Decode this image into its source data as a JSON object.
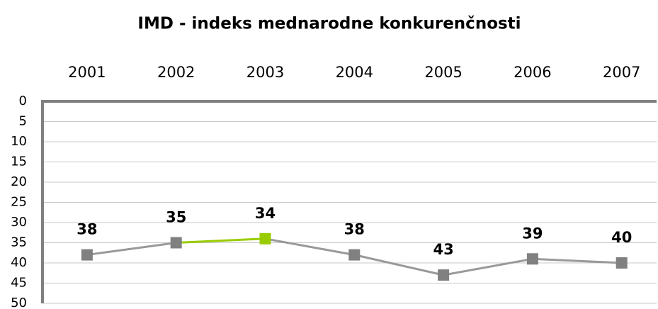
{
  "chart_data": {
    "type": "line",
    "title": "IMD - indeks mednarodne konkurenčnosti",
    "categories": [
      "2001",
      "2002",
      "2003",
      "2004",
      "2005",
      "2006",
      "2007"
    ],
    "series": [
      {
        "color": "#999999",
        "values": [
          38,
          35,
          34,
          38,
          43,
          39,
          40
        ],
        "marker_colors": [
          "#808080",
          "#808080",
          "#99cc00",
          "#808080",
          "#808080",
          "#808080",
          "#808080"
        ]
      }
    ],
    "ylim": [
      0,
      50
    ],
    "yticks": [
      0,
      5,
      10,
      15,
      20,
      25,
      30,
      35,
      40,
      45,
      50
    ],
    "y_reversed": true,
    "grid": true,
    "category_axis_position": "top"
  }
}
